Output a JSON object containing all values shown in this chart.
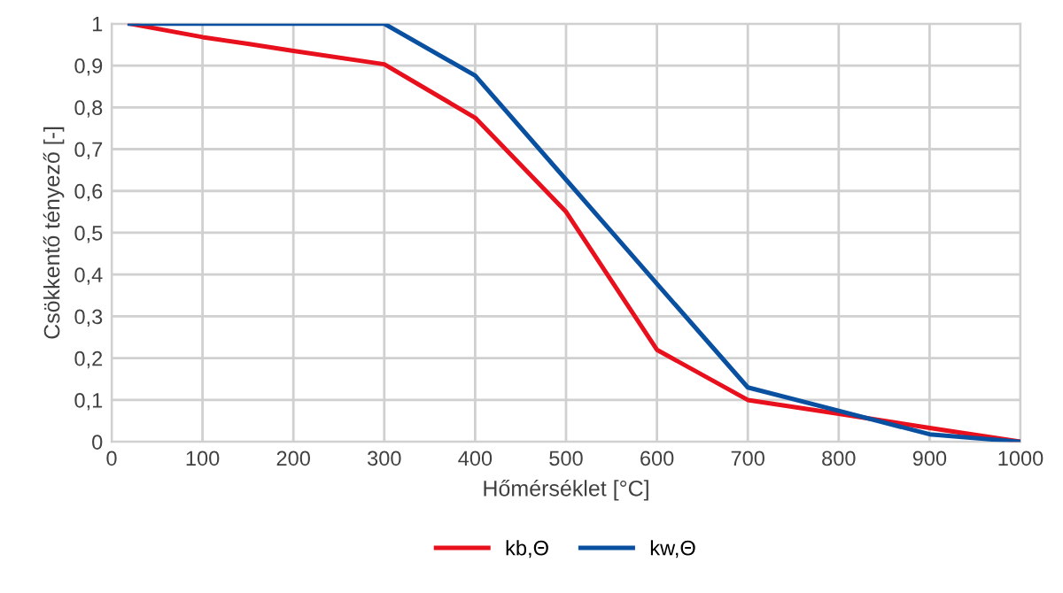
{
  "chart_data": {
    "type": "line",
    "xlabel": "Hőmérséklet [°C]",
    "ylabel": "Csökkentő tényező [-]",
    "x": [
      20,
      100,
      150,
      200,
      300,
      400,
      500,
      600,
      700,
      800,
      900,
      1000
    ],
    "series": [
      {
        "name": "kb,Θ",
        "color": "#e8101c",
        "values": [
          1,
          0.968,
          0.952,
          0.935,
          0.903,
          0.775,
          0.55,
          0.22,
          0.1,
          0.067,
          0.033,
          0
        ]
      },
      {
        "name": "kw,Θ",
        "color": "#0a50a0",
        "values": [
          1,
          1,
          1,
          1,
          1,
          0.876,
          0.627,
          0.378,
          0.13,
          0.074,
          0.018,
          0
        ]
      }
    ],
    "xlim": [
      0,
      1000
    ],
    "xticks": [
      0,
      100,
      200,
      300,
      400,
      500,
      600,
      700,
      800,
      900,
      1000
    ],
    "ylim": [
      0,
      1
    ],
    "yticks": [
      {
        "value": 0,
        "label": "0"
      },
      {
        "value": 0.1,
        "label": "0,1"
      },
      {
        "value": 0.2,
        "label": "0,2"
      },
      {
        "value": 0.3,
        "label": "0,3"
      },
      {
        "value": 0.4,
        "label": "0,4"
      },
      {
        "value": 0.5,
        "label": "0,5"
      },
      {
        "value": 0.6,
        "label": "0,6"
      },
      {
        "value": 0.7,
        "label": "0,7"
      },
      {
        "value": 0.8,
        "label": "0,8"
      },
      {
        "value": 0.9,
        "label": "0,9"
      },
      {
        "value": 1,
        "label": "1"
      }
    ],
    "grid": true,
    "legend": "bottom",
    "marker": "none",
    "line_style": "solid"
  }
}
